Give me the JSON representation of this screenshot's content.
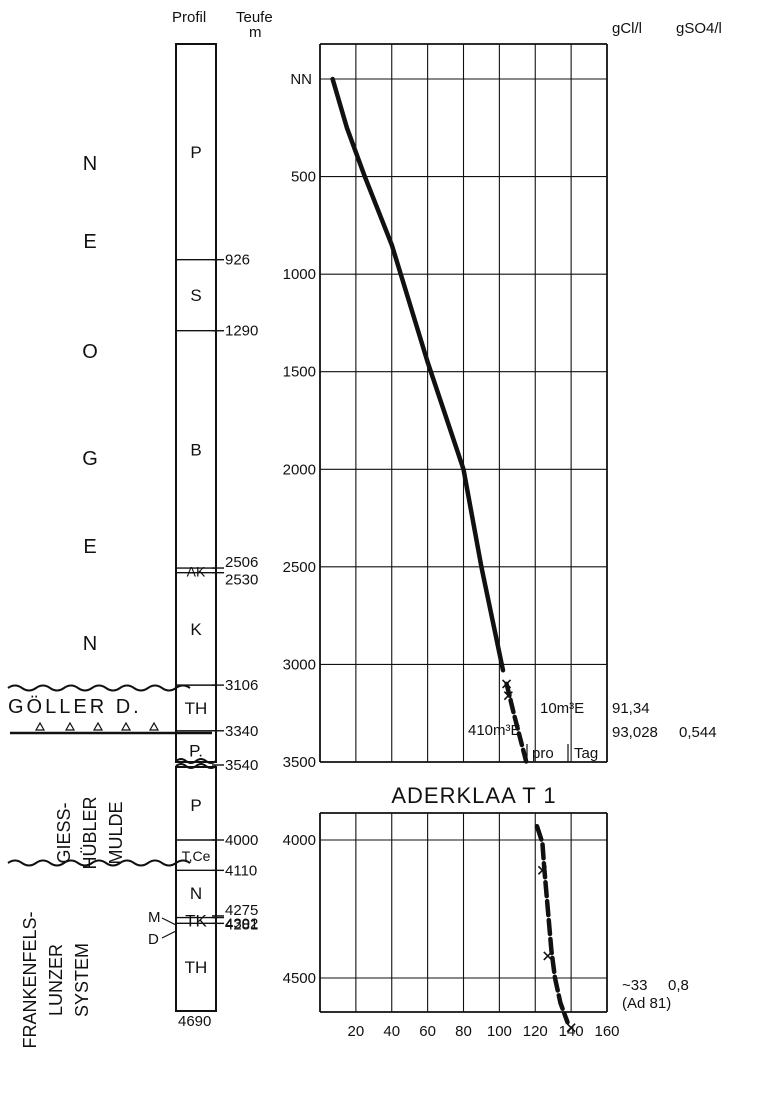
{
  "column_headers": {
    "profile": "Profil",
    "depth": "Teufe",
    "depth_unit": "m",
    "cl_unit": "gCl/l",
    "so4_unit": "gSO4/l"
  },
  "chart_title": "ADERKLAA T 1",
  "stratigraphy_labels": {
    "neogen": [
      "N",
      "E",
      "O",
      "G",
      "E",
      "N"
    ],
    "goeller": "GÖLLER D.",
    "giesshuebler": [
      "GIESS-",
      "HÜBLER",
      "MULDE"
    ],
    "frankenfels": [
      "FRANKENFELS-",
      "LUNZER",
      "SYSTEM"
    ]
  },
  "profile_units": [
    {
      "label": "P",
      "top_m": 0,
      "bottom_m": 926
    },
    {
      "label": "S",
      "top_m": 926,
      "bottom_m": 1290
    },
    {
      "label": "B",
      "top_m": 1290,
      "bottom_m": 2506
    },
    {
      "label": "AK",
      "top_m": 2506,
      "bottom_m": 2530
    },
    {
      "label": "K",
      "top_m": 2530,
      "bottom_m": 3106
    },
    {
      "label": "TH",
      "top_m": 3106,
      "bottom_m": 3340
    },
    {
      "label": "P.",
      "top_m": 3340,
      "bottom_m": 3540
    },
    {
      "label": "P",
      "top_m": 3540,
      "bottom_m": 4000
    },
    {
      "label": "T,Ce",
      "top_m": 4000,
      "bottom_m": 4110
    },
    {
      "label": "N",
      "top_m": 4110,
      "bottom_m": 4275
    },
    {
      "label": "TK",
      "top_m": 4281,
      "bottom_m": 4302
    },
    {
      "label": "TH",
      "top_m": 4302,
      "bottom_m": 4690
    }
  ],
  "depth_markers": [
    "926",
    "1290",
    "2506",
    "2530",
    "3106",
    "3340",
    "3540",
    "4000",
    "4110",
    "4275",
    "4281",
    "4302",
    "4690"
  ],
  "side_marks": {
    "m": "M",
    "d": "D"
  },
  "chart_data": {
    "type": "line",
    "title": "ADERKLAA T 1",
    "xlabel": "gCl/l",
    "ylabel": "Teufe m",
    "x_ticks": [
      "20",
      "40",
      "60",
      "80",
      "100",
      "120",
      "140",
      "160"
    ],
    "xlim": [
      0,
      160
    ],
    "upper_panel": {
      "ylim": [
        0,
        3500
      ],
      "y_ticks": [
        "NN",
        "500",
        "1000",
        "1500",
        "2000",
        "2500",
        "3000",
        "3500"
      ],
      "series": [
        {
          "values": [
            [
              7,
              0
            ],
            [
              15,
              250
            ],
            [
              25,
              500
            ],
            [
              40,
              850
            ],
            [
              60,
              1450
            ],
            [
              80,
              2000
            ],
            [
              90,
              2500
            ],
            [
              102,
              3030
            ]
          ]
        },
        {
          "values": [
            [
              104,
              3100
            ],
            [
              108,
              3250
            ],
            [
              115,
              3500
            ]
          ]
        }
      ],
      "samples": [
        {
          "x": 104,
          "y": 3100,
          "label": "10m³E",
          "cl": "91,34",
          "so4": ""
        },
        {
          "x": 105,
          "y": 3160,
          "label": "410m³E",
          "cl": "93,028",
          "so4": "0,544"
        }
      ],
      "annotations": [
        "pro",
        "Tag"
      ]
    },
    "lower_panel": {
      "ylim": [
        3950,
        4690
      ],
      "y_ticks": [
        "4000",
        "4500"
      ],
      "series": [
        {
          "values": [
            [
              121,
              3950
            ],
            [
              124,
              4010
            ],
            [
              125,
              4100
            ],
            [
              127,
              4250
            ],
            [
              129,
              4400
            ],
            [
              131,
              4500
            ],
            [
              134,
              4590
            ],
            [
              138,
              4660
            ]
          ]
        }
      ],
      "samples": [
        {
          "x": 124,
          "y": 4110
        },
        {
          "x": 127,
          "y": 4420
        },
        {
          "x": 140,
          "y": 4680
        }
      ],
      "values_label": {
        "cl": "~33",
        "so4": "0,8",
        "source": "(Ad 81)"
      }
    }
  }
}
